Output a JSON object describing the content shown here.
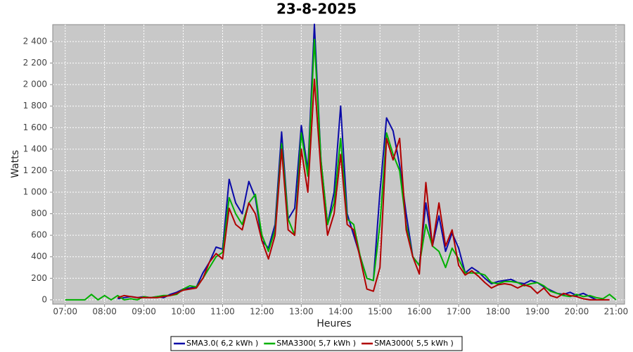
{
  "chart_data": {
    "type": "line",
    "title": "23-8-2025",
    "x_label": "Heures",
    "y_label": "Watts",
    "x": [
      "07:00",
      "07:10",
      "07:20",
      "07:30",
      "07:40",
      "07:50",
      "08:00",
      "08:10",
      "08:20",
      "08:30",
      "08:40",
      "08:50",
      "09:00",
      "09:10",
      "09:20",
      "09:30",
      "09:40",
      "09:50",
      "10:00",
      "10:10",
      "10:20",
      "10:30",
      "10:40",
      "10:50",
      "11:00",
      "11:10",
      "11:20",
      "11:30",
      "11:40",
      "11:50",
      "12:00",
      "12:10",
      "12:20",
      "12:30",
      "12:40",
      "12:50",
      "13:00",
      "13:10",
      "13:20",
      "13:30",
      "13:40",
      "13:50",
      "14:00",
      "14:10",
      "14:20",
      "14:30",
      "14:40",
      "14:50",
      "15:00",
      "15:10",
      "15:20",
      "15:30",
      "15:40",
      "15:50",
      "16:00",
      "16:10",
      "16:20",
      "16:30",
      "16:40",
      "16:50",
      "17:00",
      "17:10",
      "17:20",
      "17:30",
      "17:40",
      "17:50",
      "18:00",
      "18:10",
      "18:20",
      "18:30",
      "18:40",
      "18:50",
      "19:00",
      "19:10",
      "19:20",
      "19:30",
      "19:40",
      "19:50",
      "20:00",
      "20:10",
      "20:20",
      "20:30",
      "20:40",
      "20:50",
      "21:00"
    ],
    "series": [
      {
        "name": "SMA3.0( 6,2 kWh )",
        "color": "#0a0aa8",
        "values": [
          null,
          null,
          null,
          null,
          null,
          null,
          null,
          null,
          10,
          20,
          30,
          20,
          30,
          20,
          30,
          20,
          50,
          70,
          100,
          110,
          120,
          250,
          350,
          490,
          470,
          1120,
          900,
          800,
          1100,
          950,
          550,
          480,
          700,
          1560,
          750,
          850,
          1620,
          1200,
          2560,
          1300,
          700,
          1000,
          1800,
          800,
          600,
          400,
          200,
          180,
          1000,
          1690,
          1570,
          1250,
          800,
          400,
          320,
          900,
          500,
          780,
          450,
          620,
          480,
          250,
          300,
          260,
          200,
          150,
          170,
          180,
          190,
          160,
          150,
          180,
          160,
          120,
          90,
          60,
          50,
          70,
          40,
          60,
          30,
          0,
          null,
          null,
          null
        ]
      },
      {
        "name": "SMA3300( 5,7 kWh )",
        "color": "#00b000",
        "values": [
          0,
          0,
          0,
          0,
          50,
          0,
          40,
          0,
          40,
          0,
          10,
          0,
          30,
          20,
          30,
          40,
          40,
          50,
          100,
          130,
          120,
          200,
          300,
          400,
          440,
          950,
          800,
          700,
          900,
          980,
          600,
          450,
          650,
          1450,
          750,
          600,
          1550,
          1150,
          2420,
          1300,
          700,
          900,
          1500,
          750,
          700,
          400,
          200,
          180,
          700,
          1550,
          1350,
          1200,
          700,
          400,
          320,
          700,
          500,
          450,
          300,
          480,
          380,
          250,
          250,
          250,
          230,
          160,
          150,
          170,
          170,
          160,
          130,
          150,
          160,
          130,
          80,
          60,
          40,
          30,
          50,
          30,
          40,
          20,
          10,
          50,
          0
        ]
      },
      {
        "name": "SMA3000( 5,5 kWh )",
        "color": "#b00000",
        "values": [
          null,
          null,
          null,
          null,
          null,
          null,
          null,
          null,
          20,
          40,
          30,
          20,
          20,
          20,
          20,
          30,
          40,
          60,
          90,
          100,
          110,
          200,
          350,
          430,
          380,
          850,
          700,
          650,
          900,
          800,
          550,
          380,
          600,
          1400,
          650,
          600,
          1400,
          1000,
          2050,
          1200,
          600,
          800,
          1350,
          700,
          650,
          380,
          100,
          80,
          300,
          1500,
          1300,
          1500,
          650,
          400,
          240,
          1090,
          500,
          900,
          500,
          650,
          320,
          230,
          270,
          220,
          160,
          110,
          140,
          150,
          140,
          110,
          140,
          120,
          60,
          110,
          40,
          20,
          60,
          40,
          30,
          10,
          0,
          0,
          0,
          0,
          null
        ]
      }
    ],
    "xlim": [
      "06:41",
      "21:13"
    ],
    "xticks": [
      "07:00",
      "08:00",
      "09:00",
      "10:00",
      "11:00",
      "12:00",
      "13:00",
      "14:00",
      "15:00",
      "16:00",
      "17:00",
      "18:00",
      "19:00",
      "20:00",
      "21:00"
    ],
    "ylim": [
      -40,
      2557
    ],
    "yticks": [
      0,
      200,
      400,
      600,
      800,
      {
        "value": 1000,
        "label": "1 000"
      },
      {
        "value": 1200,
        "label": "1 200"
      },
      {
        "value": 1400,
        "label": "1 400"
      },
      {
        "value": 1600,
        "label": "1 600"
      },
      {
        "value": 1800,
        "label": "1 800"
      },
      {
        "value": 2000,
        "label": "2 000"
      },
      {
        "value": 2200,
        "label": "2 200"
      },
      {
        "value": 2400,
        "label": "2 400"
      }
    ],
    "grid": true,
    "legend": "bottom"
  }
}
